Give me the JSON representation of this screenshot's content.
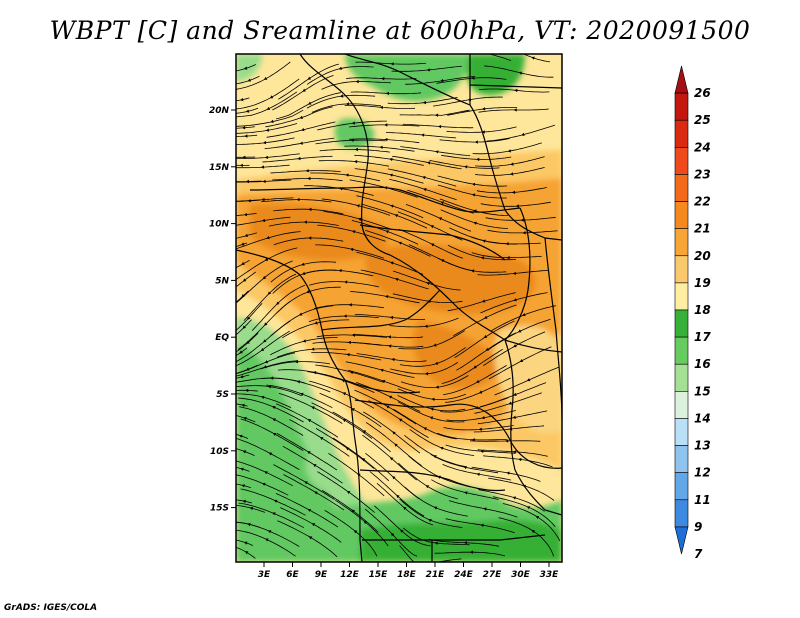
{
  "title": "WBPT [C] and Sreamline at 600hPa, VT: 2020091500",
  "credit": "GrADS: IGES/COLA",
  "map": {
    "lat_labels": [
      "20N",
      "15N",
      "10N",
      "5N",
      "EQ",
      "5S",
      "10S",
      "15S"
    ],
    "lon_labels": [
      "3E",
      "6E",
      "9E",
      "12E",
      "15E",
      "18E",
      "21E",
      "24E",
      "27E",
      "30E",
      "33E"
    ],
    "lat_range": [
      -20,
      24
    ],
    "lon_range": [
      0,
      35
    ],
    "region_colors": {
      "green_dark": "#36b034",
      "green_mid": "#62c962",
      "green_light": "#98dc8c",
      "yellow": "#fee69a",
      "orange_light": "#fcc865",
      "orange": "#f5a330",
      "orange_dark": "#ea8a1f",
      "streamline": "#000000"
    }
  },
  "colorbar": {
    "labels": [
      "26",
      "25",
      "24",
      "23",
      "22",
      "21",
      "20",
      "19",
      "18",
      "17",
      "16",
      "15",
      "14",
      "13",
      "12",
      "11",
      "9",
      "7"
    ],
    "colors": [
      "#a50f15",
      "#c4170f",
      "#dc2a12",
      "#ef4a1b",
      "#f26a1a",
      "#f6891e",
      "#f7a537",
      "#fbc96b",
      "#fdeea2",
      "#38b13b",
      "#66cc5e",
      "#a4e195",
      "#dcf2dc",
      "#b9e0f7",
      "#8ec4ef",
      "#62a7e8",
      "#3e8ae0",
      "#1e6ed8"
    ]
  }
}
